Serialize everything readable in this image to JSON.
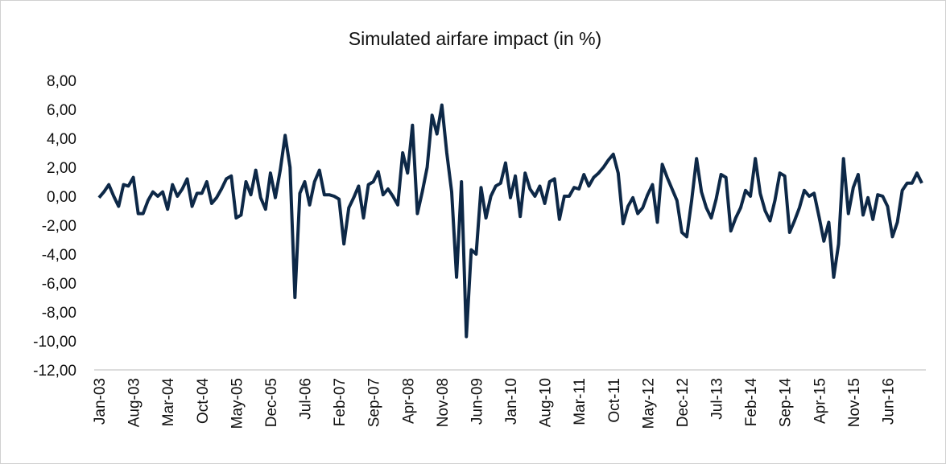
{
  "chart_data": {
    "type": "line",
    "title": "Simulated airfare impact (in %)",
    "categories": [
      "Jan-03",
      null,
      null,
      null,
      null,
      null,
      null,
      "Aug-03",
      null,
      null,
      null,
      null,
      null,
      null,
      "Mar-04",
      null,
      null,
      null,
      null,
      null,
      null,
      "Oct-04",
      null,
      null,
      null,
      null,
      null,
      null,
      "May-05",
      null,
      null,
      null,
      null,
      null,
      null,
      "Dec-05",
      null,
      null,
      null,
      null,
      null,
      null,
      "Jul-06",
      null,
      null,
      null,
      null,
      null,
      null,
      "Feb-07",
      null,
      null,
      null,
      null,
      null,
      null,
      "Sep-07",
      null,
      null,
      null,
      null,
      null,
      null,
      "Apr-08",
      null,
      null,
      null,
      null,
      null,
      null,
      "Nov-08",
      null,
      null,
      null,
      null,
      null,
      null,
      "Jun-09",
      null,
      null,
      null,
      null,
      null,
      null,
      "Jan-10",
      null,
      null,
      null,
      null,
      null,
      null,
      "Aug-10",
      null,
      null,
      null,
      null,
      null,
      null,
      "Mar-11",
      null,
      null,
      null,
      null,
      null,
      null,
      "Oct-11",
      null,
      null,
      null,
      null,
      null,
      null,
      "May-12",
      null,
      null,
      null,
      null,
      null,
      null,
      "Dec-12",
      null,
      null,
      null,
      null,
      null,
      null,
      "Jul-13",
      null,
      null,
      null,
      null,
      null,
      null,
      "Feb-14",
      null,
      null,
      null,
      null,
      null,
      null,
      "Sep-14",
      null,
      null,
      null,
      null,
      null,
      null,
      "Apr-15",
      null,
      null,
      null,
      null,
      null,
      null,
      "Nov-15",
      null,
      null,
      null,
      null,
      null,
      null,
      "Jun-16",
      null,
      null,
      null,
      null,
      null,
      null,
      null
    ],
    "series": [
      {
        "name": "Simulated airfare impact",
        "color": "#0d2847",
        "values": [
          -0.1,
          0.3,
          0.8,
          0.0,
          -0.7,
          0.8,
          0.7,
          1.3,
          -1.2,
          -1.2,
          -0.3,
          0.3,
          0.0,
          0.3,
          -0.9,
          0.8,
          0.0,
          0.5,
          1.2,
          -0.7,
          0.2,
          0.2,
          1.0,
          -0.5,
          -0.1,
          0.5,
          1.2,
          1.4,
          -1.5,
          -1.3,
          1.0,
          0.1,
          1.8,
          -0.1,
          -0.9,
          1.6,
          -0.1,
          1.8,
          4.2,
          2.0,
          -7.0,
          0.2,
          1.0,
          -0.6,
          1.0,
          1.8,
          0.1,
          0.1,
          0.0,
          -0.2,
          -3.3,
          -0.8,
          -0.1,
          0.7,
          -1.5,
          0.8,
          1.0,
          1.7,
          0.1,
          0.5,
          0.0,
          -0.6,
          3.0,
          1.6,
          4.9,
          -1.2,
          0.3,
          2.0,
          5.6,
          4.3,
          6.3,
          3.0,
          0.3,
          -5.6,
          1.0,
          -9.7,
          -3.7,
          -4.0,
          0.6,
          -1.5,
          0.0,
          0.7,
          0.9,
          2.3,
          -0.1,
          1.4,
          -1.4,
          1.6,
          0.5,
          0.0,
          0.7,
          -0.5,
          1.0,
          1.2,
          -1.6,
          0.0,
          0.0,
          0.6,
          0.5,
          1.5,
          0.7,
          1.3,
          1.6,
          2.0,
          2.5,
          2.9,
          1.6,
          -1.9,
          -0.7,
          -0.1,
          -1.2,
          -0.8,
          0.1,
          0.8,
          -1.8,
          2.2,
          1.3,
          0.5,
          -0.3,
          -2.5,
          -2.8,
          -0.3,
          2.6,
          0.3,
          -0.8,
          -1.5,
          -0.2,
          1.5,
          1.3,
          -2.4,
          -1.5,
          -0.8,
          0.4,
          0.0,
          2.6,
          0.2,
          -1.0,
          -1.7,
          -0.3,
          1.6,
          1.4,
          -2.5,
          -1.7,
          -0.8,
          0.4,
          0.0,
          0.2,
          -1.4,
          -3.1,
          -1.8,
          -5.6,
          -3.3,
          2.6,
          -1.2,
          0.6,
          1.5,
          -1.3,
          -0.1,
          -1.6,
          0.1,
          0.0,
          -0.7,
          -2.8,
          -1.8,
          0.4,
          0.9,
          0.9,
          1.6,
          0.9
        ]
      }
    ],
    "ylim": [
      -12,
      8
    ],
    "yticks": [
      {
        "value": 8,
        "label": "8,00"
      },
      {
        "value": 6,
        "label": "6,00"
      },
      {
        "value": 4,
        "label": "4,00"
      },
      {
        "value": 2,
        "label": "2,00"
      },
      {
        "value": 0,
        "label": "0,00"
      },
      {
        "value": -2,
        "label": "-2,00"
      },
      {
        "value": -4,
        "label": "-4,00"
      },
      {
        "value": -6,
        "label": "-6,00"
      },
      {
        "value": -8,
        "label": "-8,00"
      },
      {
        "value": -10,
        "label": "-10,00"
      },
      {
        "value": -12,
        "label": "-12,00"
      }
    ],
    "grid": false
  }
}
